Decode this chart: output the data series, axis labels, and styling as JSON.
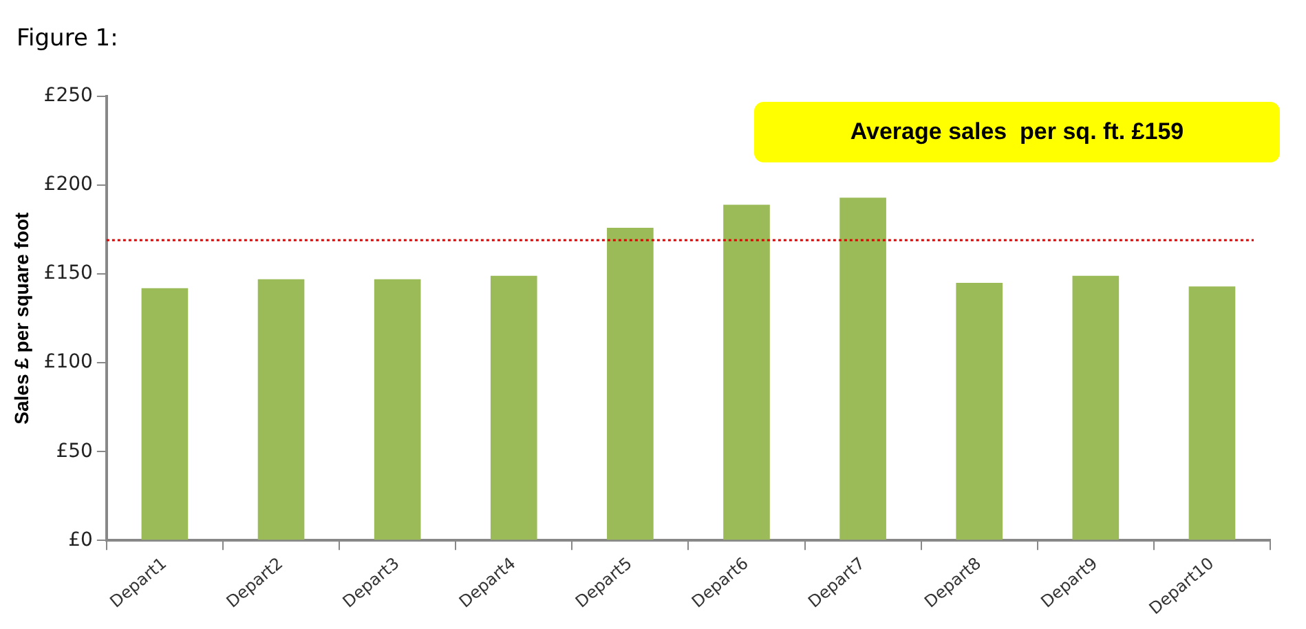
{
  "chart_data": {
    "type": "bar",
    "title": "Figure 1:",
    "ylabel": "Sales £ per square foot",
    "categories": [
      "Depart1",
      "Depart2",
      "Depart3",
      "Depart4",
      "Depart5",
      "Depart6",
      "Depart7",
      "Depart8",
      "Depart9",
      "Depart10"
    ],
    "values": [
      142,
      147,
      147,
      149,
      176,
      189,
      193,
      145,
      149,
      143
    ],
    "color": "#9bbb59",
    "ylim": [
      0,
      250
    ],
    "yticks": [
      {
        "value": 0,
        "label": "£0"
      },
      {
        "value": 50,
        "label": "£50"
      },
      {
        "value": 100,
        "label": "£100"
      },
      {
        "value": 150,
        "label": "£150"
      },
      {
        "value": 200,
        "label": "£200"
      },
      {
        "value": 250,
        "label": "£250"
      }
    ],
    "ref_lines": [
      {
        "axis": "y",
        "value": 169,
        "color": "#e00000",
        "line_style": "dotted"
      }
    ],
    "annotations": [
      "Average sales  per sq. ft. £159"
    ],
    "grid": false,
    "legend": false
  }
}
